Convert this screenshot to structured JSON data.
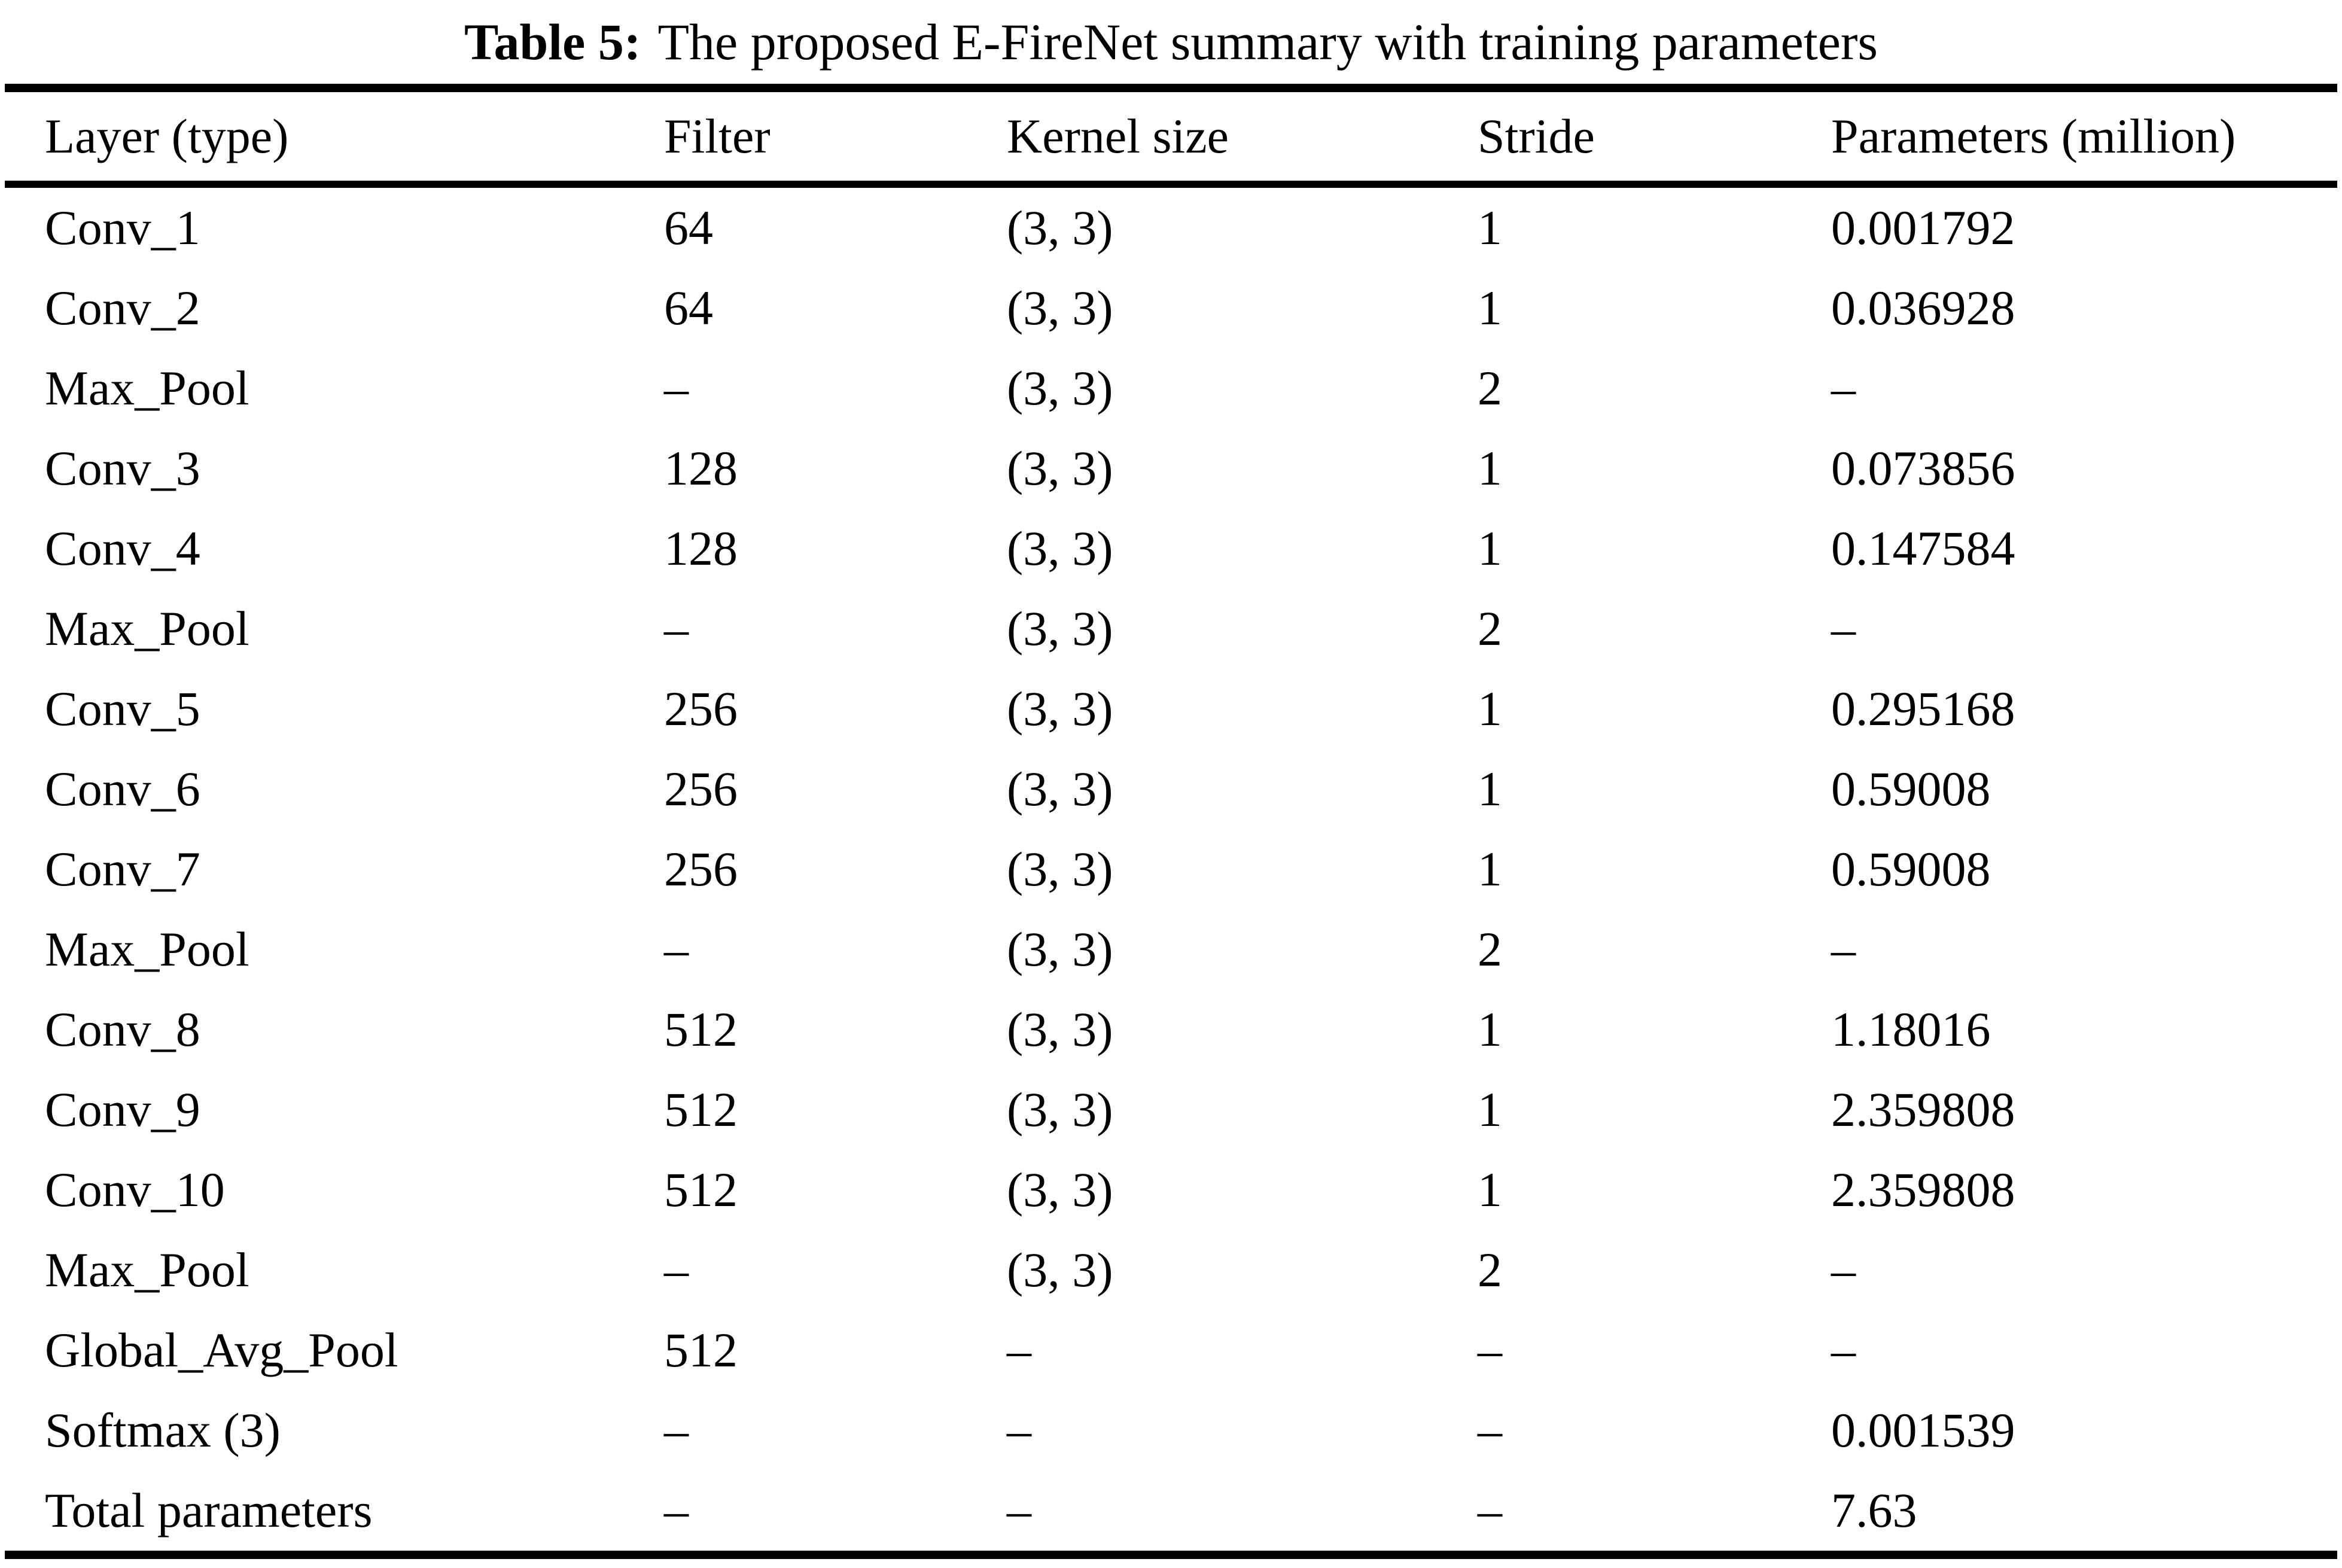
{
  "caption": {
    "label": "Table 5:",
    "text": "The proposed E-FireNet summary with training parameters"
  },
  "table": {
    "columns": [
      "Layer (type)",
      "Filter",
      "Kernel size",
      "Stride",
      "Parameters (million)"
    ],
    "rows": [
      [
        "Conv_1",
        "64",
        "(3, 3)",
        "1",
        "0.001792"
      ],
      [
        "Conv_2",
        "64",
        "(3, 3)",
        "1",
        "0.036928"
      ],
      [
        "Max_Pool",
        "–",
        "(3, 3)",
        "2",
        "–"
      ],
      [
        "Conv_3",
        "128",
        "(3, 3)",
        "1",
        "0.073856"
      ],
      [
        "Conv_4",
        "128",
        "(3, 3)",
        "1",
        "0.147584"
      ],
      [
        "Max_Pool",
        "–",
        "(3, 3)",
        "2",
        "–"
      ],
      [
        "Conv_5",
        "256",
        "(3, 3)",
        "1",
        "0.295168"
      ],
      [
        "Conv_6",
        "256",
        "(3, 3)",
        "1",
        "0.59008"
      ],
      [
        "Conv_7",
        "256",
        "(3, 3)",
        "1",
        "0.59008"
      ],
      [
        "Max_Pool",
        "–",
        "(3, 3)",
        "2",
        "–"
      ],
      [
        "Conv_8",
        "512",
        "(3, 3)",
        "1",
        "1.18016"
      ],
      [
        "Conv_9",
        "512",
        "(3, 3)",
        "1",
        "2.359808"
      ],
      [
        "Conv_10",
        "512",
        "(3, 3)",
        "1",
        "2.359808"
      ],
      [
        "Max_Pool",
        "–",
        "(3, 3)",
        "2",
        "–"
      ],
      [
        "Global_Avg_Pool",
        "512",
        "–",
        "–",
        "–"
      ],
      [
        "Softmax (3)",
        "–",
        "–",
        "–",
        "0.001539"
      ],
      [
        "Total parameters",
        "–",
        "–",
        "–",
        "7.63"
      ]
    ]
  },
  "colors": {
    "text": "#000000",
    "background": "#ffffff",
    "rule": "#000000"
  }
}
